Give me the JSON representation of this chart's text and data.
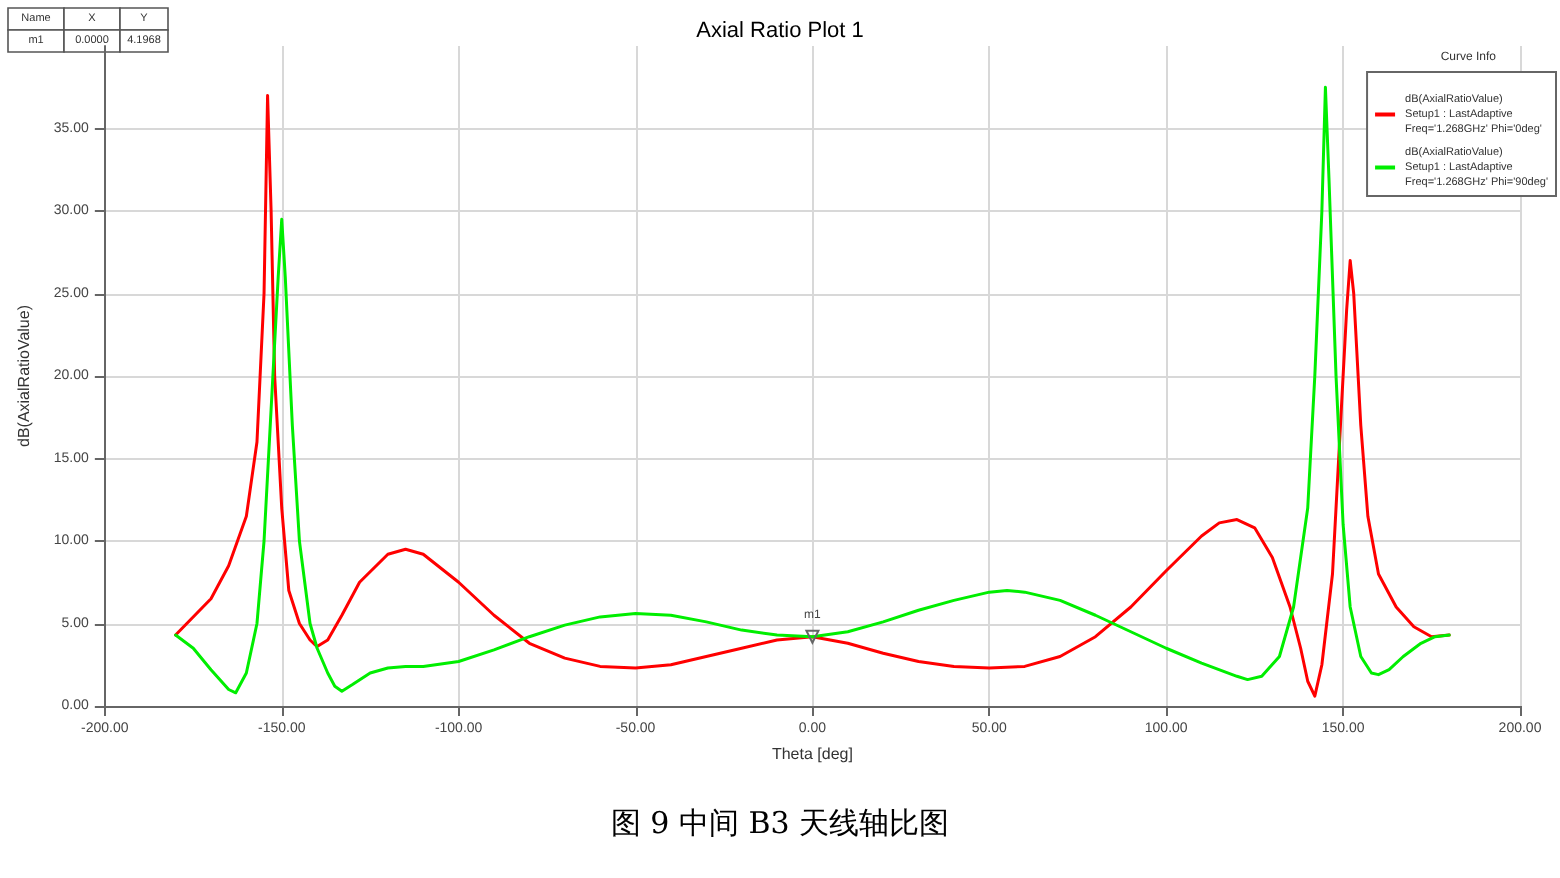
{
  "chart_data": {
    "type": "line",
    "title": "Axial Ratio Plot 1",
    "xlabel": "Theta [deg]",
    "ylabel": "dB(AxialRatioValue)",
    "legend_title": "Curve Info",
    "xlim": [
      -200,
      200
    ],
    "xticks": [
      {
        "value": -200,
        "label": "-200.00"
      },
      {
        "value": -150,
        "label": "-150.00"
      },
      {
        "value": -100,
        "label": "-100.00"
      },
      {
        "value": -50,
        "label": "-50.00"
      },
      {
        "value": 0,
        "label": "0.00"
      },
      {
        "value": 50,
        "label": "50.00"
      },
      {
        "value": 100,
        "label": "100.00"
      },
      {
        "value": 150,
        "label": "150.00"
      },
      {
        "value": 200,
        "label": "200.00"
      }
    ],
    "ylim": [
      0,
      40
    ],
    "yticks": [
      {
        "value": 0,
        "label": "0.00"
      },
      {
        "value": 5,
        "label": "5.00"
      },
      {
        "value": 10,
        "label": "10.00"
      },
      {
        "value": 15,
        "label": "15.00"
      },
      {
        "value": 20,
        "label": "20.00"
      },
      {
        "value": 25,
        "label": "25.00"
      },
      {
        "value": 30,
        "label": "30.00"
      },
      {
        "value": 35,
        "label": "35.00"
      }
    ],
    "grid": true,
    "legend": "top right",
    "marker": "none",
    "line_style": "solid",
    "series": [
      {
        "name": "dB(AxialRatioValue)\nSetup1 : LastAdaptive\nFreq='1.268GHz' Phi='0deg'",
        "color": "#ff0000",
        "x": [
          -180,
          -170,
          -165,
          -160,
          -157,
          -155,
          -154,
          -153,
          -152,
          -150,
          -148,
          -145,
          -142,
          -140,
          -137,
          -133,
          -128,
          -120,
          -115,
          -110,
          -100,
          -90,
          -80,
          -70,
          -60,
          -50,
          -40,
          -30,
          -20,
          -10,
          0,
          10,
          20,
          30,
          40,
          50,
          60,
          70,
          80,
          90,
          100,
          110,
          115,
          120,
          125,
          130,
          135,
          138,
          140,
          142,
          144,
          147,
          149,
          151,
          152,
          153,
          155,
          157,
          160,
          165,
          170,
          175,
          180
        ],
        "values": [
          4.3,
          6.5,
          8.5,
          11.5,
          16,
          25,
          37,
          30,
          20,
          12,
          7,
          5,
          4,
          3.6,
          4,
          5.5,
          7.5,
          9.2,
          9.5,
          9.2,
          7.5,
          5.5,
          3.8,
          2.9,
          2.4,
          2.3,
          2.5,
          3.0,
          3.5,
          4.0,
          4.2,
          3.8,
          3.2,
          2.7,
          2.4,
          2.3,
          2.4,
          3.0,
          4.2,
          6.0,
          8.2,
          10.3,
          11.1,
          11.3,
          10.8,
          9.0,
          6.0,
          3.5,
          1.5,
          0.6,
          2.5,
          8,
          16,
          24,
          27,
          25,
          17,
          11.5,
          8,
          6,
          4.8,
          4.2,
          4.3
        ]
      },
      {
        "name": "dB(AxialRatioValue)\nSetup1 : LastAdaptive\nFreq='1.268GHz' Phi='90deg'",
        "color": "#00ee00",
        "x": [
          -180,
          -175,
          -170,
          -165,
          -163,
          -160,
          -157,
          -155,
          -153,
          -151,
          -150,
          -149,
          -147,
          -145,
          -142,
          -140,
          -137,
          -135,
          -133,
          -130,
          -125,
          -120,
          -115,
          -110,
          -100,
          -90,
          -80,
          -70,
          -60,
          -50,
          -40,
          -30,
          -20,
          -10,
          0,
          10,
          20,
          30,
          40,
          50,
          55,
          60,
          70,
          80,
          90,
          100,
          110,
          120,
          123,
          127,
          132,
          136,
          140,
          142,
          144,
          145,
          146,
          148,
          150,
          152,
          155,
          158,
          160,
          163,
          167,
          172,
          176,
          180
        ],
        "values": [
          4.3,
          3.5,
          2.2,
          1.0,
          0.8,
          2.0,
          5,
          10,
          18,
          26,
          29.5,
          26,
          17,
          10,
          5,
          3.5,
          2,
          1.2,
          0.9,
          1.3,
          2.0,
          2.3,
          2.4,
          2.4,
          2.7,
          3.4,
          4.2,
          4.9,
          5.4,
          5.6,
          5.5,
          5.1,
          4.6,
          4.3,
          4.2,
          4.5,
          5.1,
          5.8,
          6.4,
          6.9,
          7.0,
          6.9,
          6.4,
          5.5,
          4.5,
          3.5,
          2.6,
          1.8,
          1.6,
          1.8,
          3,
          6,
          12,
          20,
          30,
          37.5,
          32,
          20,
          11,
          6,
          3,
          2.0,
          1.9,
          2.2,
          3,
          3.8,
          4.2,
          4.3
        ]
      }
    ],
    "annotations": [
      {
        "text": "m1",
        "x": 0,
        "y": 4.1968
      },
      "Name",
      "X",
      "Y",
      "m1",
      "0.0000",
      "4.1968",
      "图 9 中间 B3 天线轴比图"
    ]
  }
}
